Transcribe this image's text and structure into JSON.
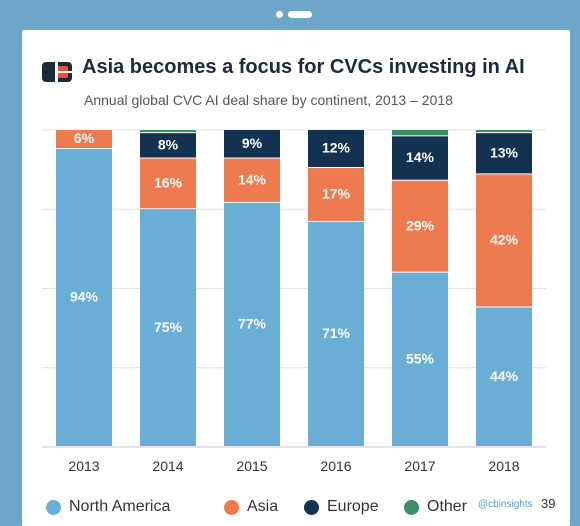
{
  "header": {
    "title": "Asia becomes a focus for CVCs investing in AI",
    "subtitle": "Annual global CVC AI deal share by continent, 2013 – 2018"
  },
  "footer": {
    "source": "@cbinsights",
    "page_number": "39"
  },
  "colors": {
    "North America": "#6aadd5",
    "Asia": "#ee7a50",
    "Europe": "#133150",
    "Other": "#3b8f64",
    "brand_logo": "#1c2b3a",
    "brand_accent": "#e5533d"
  },
  "chart_data": {
    "type": "bar",
    "stacked": true,
    "title": "Asia becomes a focus for CVCs investing in AI",
    "subtitle": "Annual global CVC AI deal share by continent, 2013 – 2018",
    "xlabel": "",
    "ylabel": "",
    "ylim": [
      0,
      100
    ],
    "grid": true,
    "legend_position": "bottom",
    "categories": [
      "2013",
      "2014",
      "2015",
      "2016",
      "2017",
      "2018"
    ],
    "series": [
      {
        "name": "North America",
        "values": [
          94,
          75,
          77,
          71,
          55,
          44
        ],
        "labels": [
          "94%",
          "75%",
          "77%",
          "71%",
          "55%",
          "44%"
        ]
      },
      {
        "name": "Asia",
        "values": [
          6,
          16,
          14,
          17,
          29,
          42
        ],
        "labels": [
          "6%",
          "16%",
          "14%",
          "17%",
          "29%",
          "42%"
        ]
      },
      {
        "name": "Europe",
        "values": [
          0,
          8,
          9,
          12,
          14,
          13
        ],
        "labels": [
          "",
          "8%",
          "9%",
          "12%",
          "14%",
          "13%"
        ]
      },
      {
        "name": "Other",
        "values": [
          0,
          1,
          0,
          0,
          2,
          1
        ],
        "labels": [
          "",
          "",
          "",
          "",
          "",
          ""
        ]
      }
    ]
  }
}
